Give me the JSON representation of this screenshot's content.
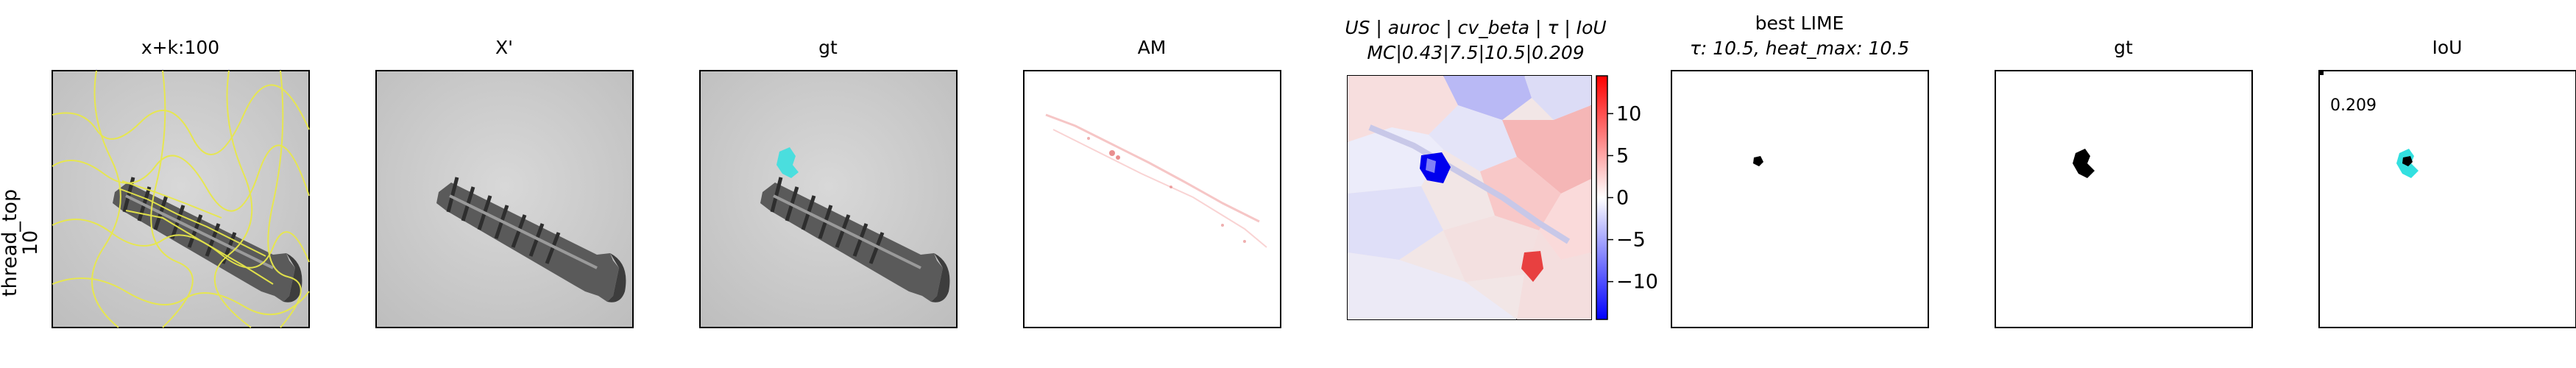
{
  "row_label": [
    "thread_top",
    "10"
  ],
  "panels": [
    {
      "title": "x+k:100"
    },
    {
      "title": "X'"
    },
    {
      "title": "gt"
    },
    {
      "title": "AM"
    },
    {
      "title_line1": "US | auroc | cv_beta | τ | IoU",
      "title_line2": "MC|0.43|7.5|10.5|0.209"
    },
    {
      "title_line1": "best LIME",
      "title_line2": "τ: 10.5, heat_max: 10.5"
    },
    {
      "title": "gt"
    },
    {
      "title": "IoU",
      "annotation": "0.209"
    }
  ],
  "colorbar": {
    "ticks": [
      "10",
      "5",
      "0",
      "−5",
      "−10"
    ],
    "tick_values": [
      10,
      5,
      0,
      -5,
      -10
    ],
    "range": [
      -14.5,
      14.5
    ],
    "colors": {
      "top": "#ff0000",
      "mid": "#ffffff",
      "bottom": "#0000ff"
    }
  },
  "colors": {
    "superpixel_edges": "#e8e84a",
    "gt_overlay": "#33e0e0",
    "am_heat": "#e06060"
  }
}
